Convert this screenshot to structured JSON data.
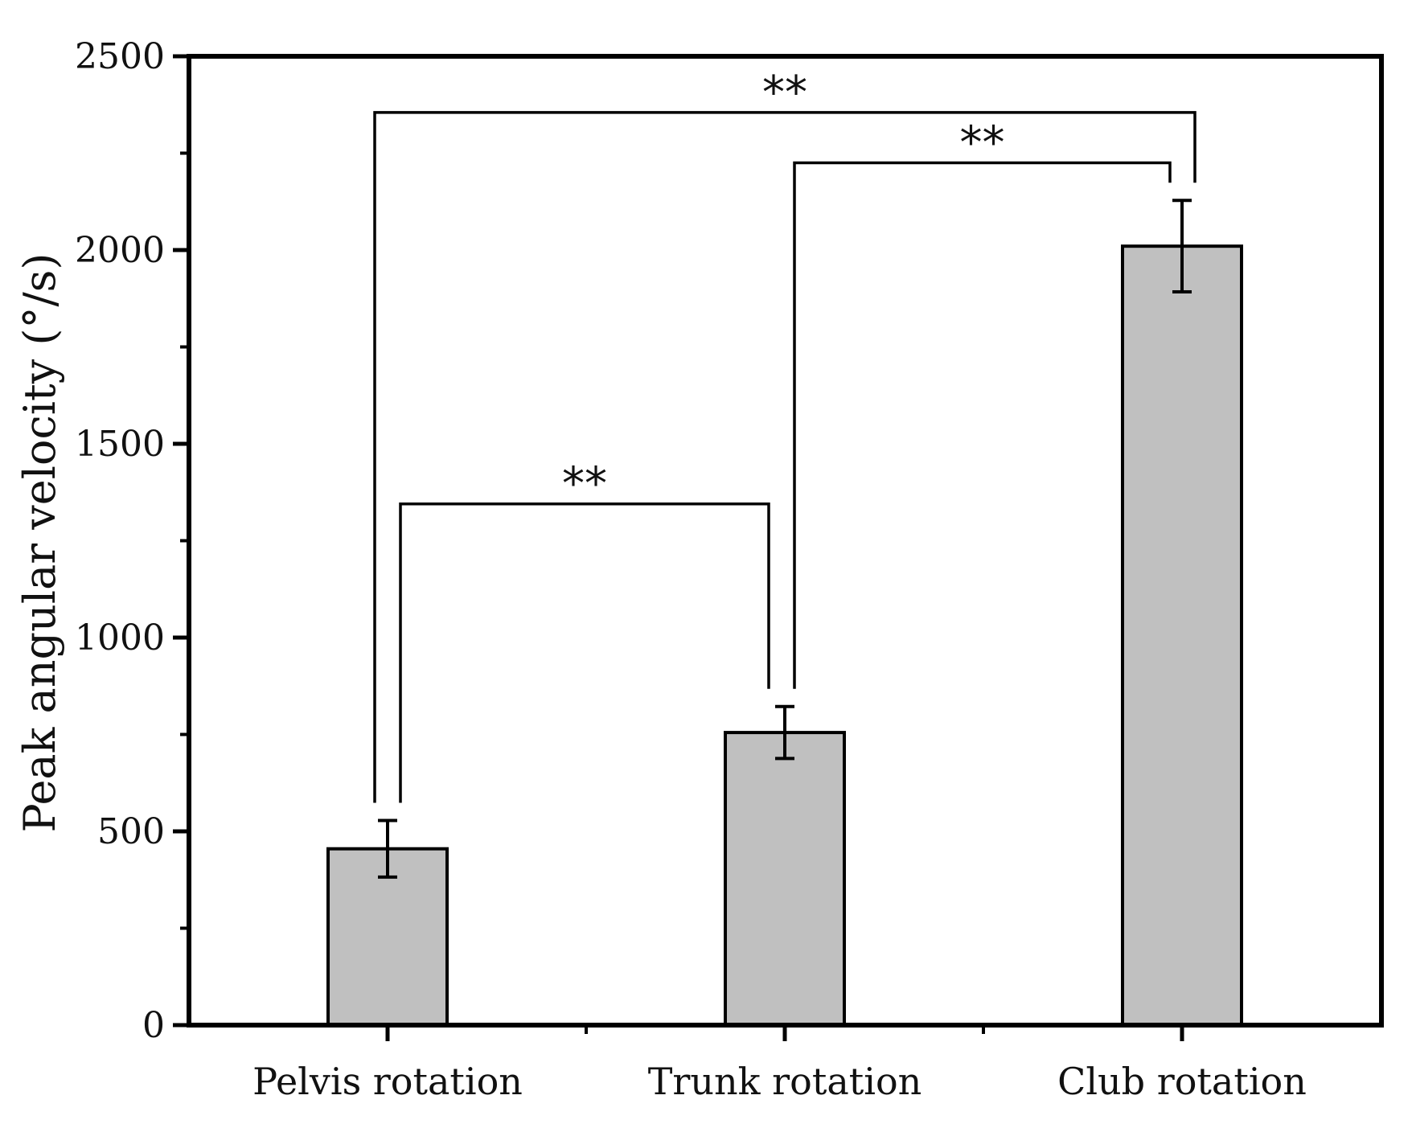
{
  "chart_data": {
    "type": "bar",
    "title": "",
    "xlabel": "",
    "ylabel": "Peak angular velocity (°/s)",
    "ylim": [
      0,
      2500
    ],
    "yticks": [
      0,
      500,
      1000,
      1500,
      2000,
      2500
    ],
    "grid": false,
    "categories": [
      "Pelvis rotation",
      "Trunk rotation",
      "Club rotation"
    ],
    "values": [
      455,
      755,
      2010
    ],
    "errors": [
      73,
      67,
      118
    ],
    "colors": {
      "bar_fill": "#c0c0c0",
      "bar_edge": "#000000",
      "axis": "#000000"
    },
    "significance": [
      {
        "from": 0,
        "to": 1,
        "label": "**",
        "level": 1345
      },
      {
        "from": 1,
        "to": 2,
        "label": "**",
        "level": 2225
      },
      {
        "from": 0,
        "to": 2,
        "label": "**",
        "level": 2355
      }
    ]
  }
}
